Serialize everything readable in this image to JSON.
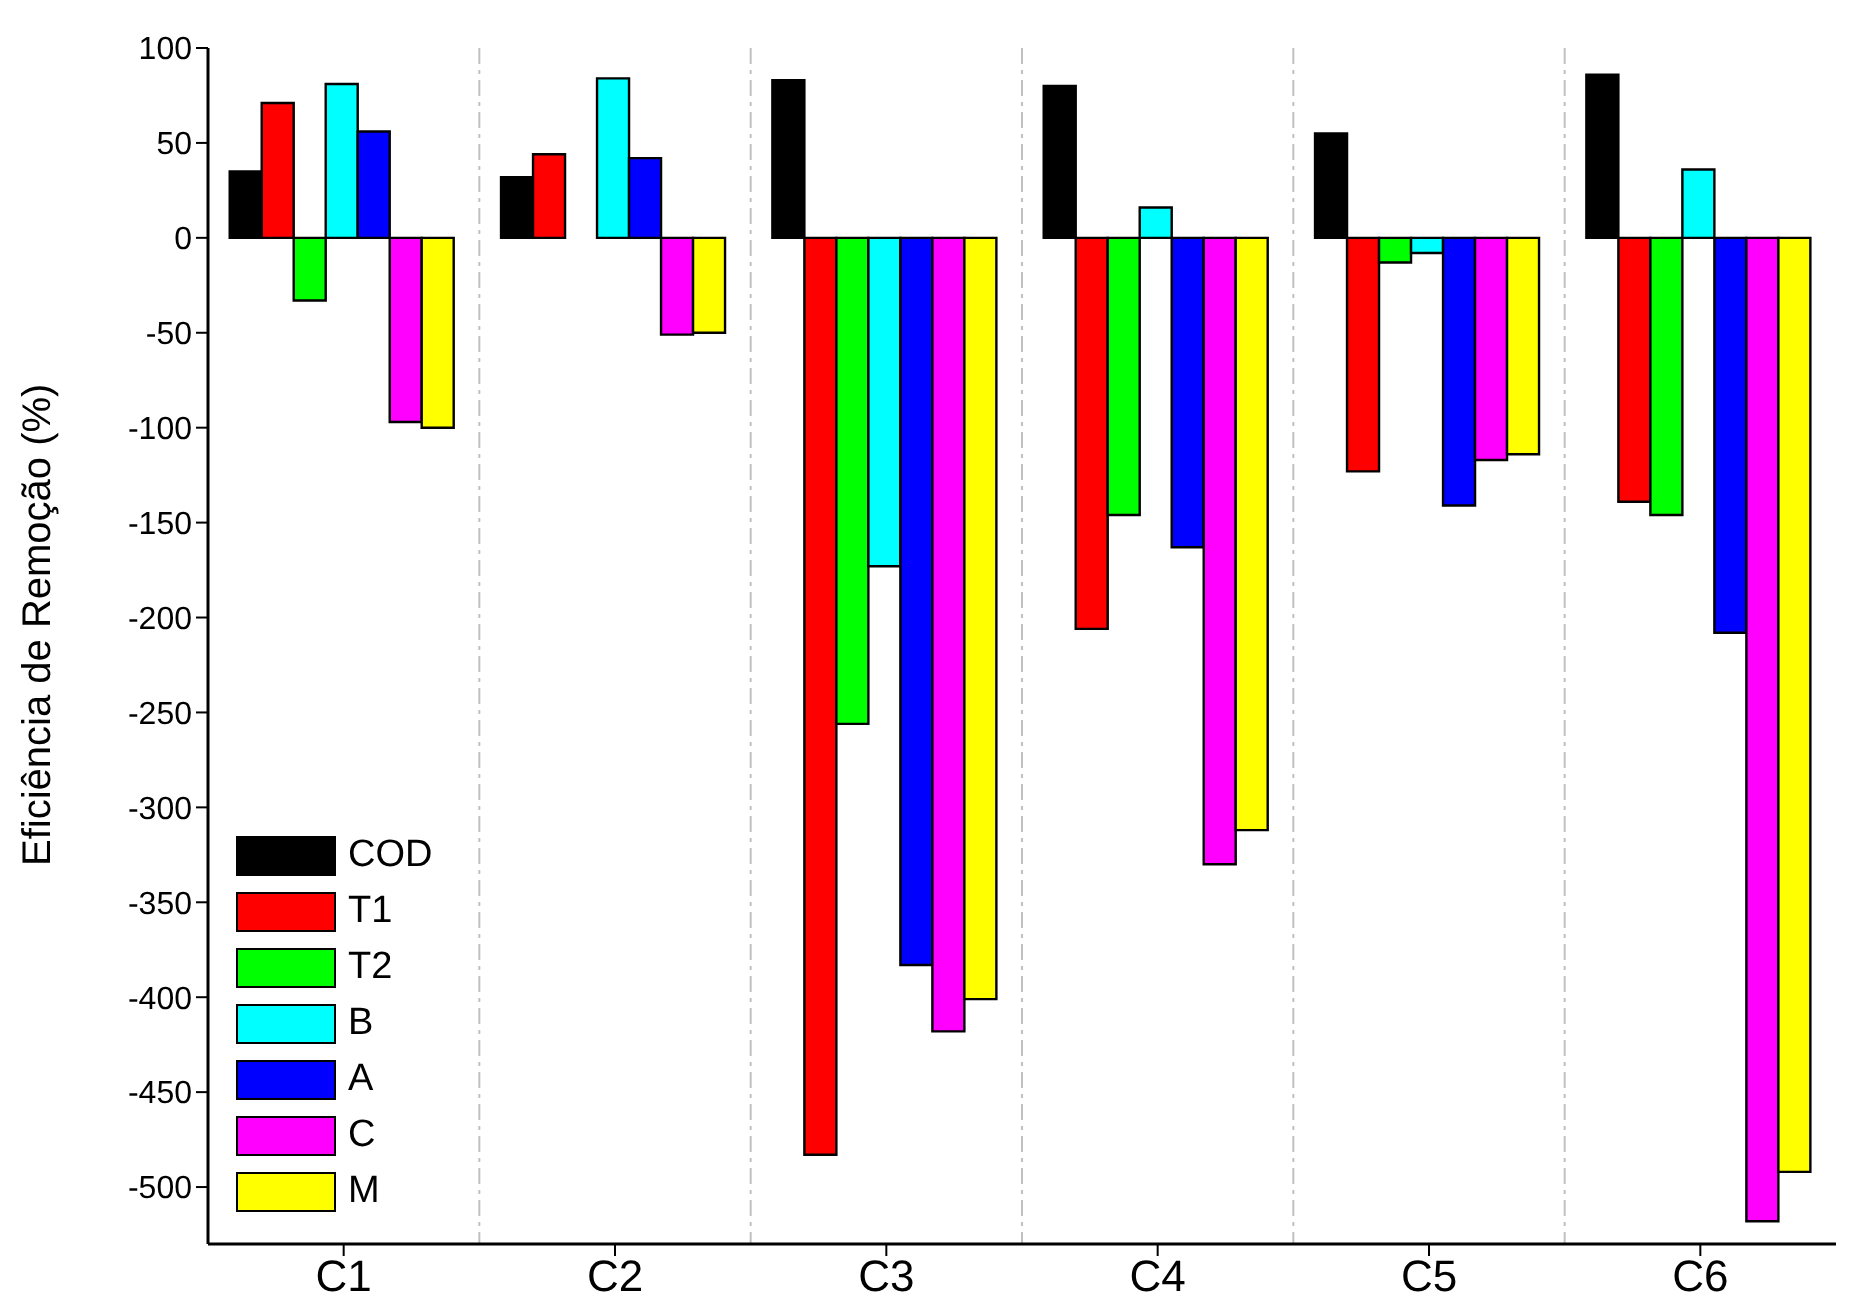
{
  "chart_data": {
    "type": "bar",
    "ylabel": "Eficiência de Remoção (%)",
    "categories": [
      "C1",
      "C2",
      "C3",
      "C4",
      "C5",
      "C6"
    ],
    "series": [
      {
        "name": "COD",
        "color": "#000000",
        "values": [
          35,
          32,
          83,
          80,
          55,
          86
        ]
      },
      {
        "name": "T1",
        "color": "#ff0000",
        "values": [
          71,
          44,
          -483,
          -206,
          -123,
          -139
        ]
      },
      {
        "name": "T2",
        "color": "#00ff00",
        "values": [
          -33,
          null,
          -256,
          -146,
          -13,
          -146
        ]
      },
      {
        "name": "B",
        "color": "#00ffff",
        "values": [
          81,
          84,
          -173,
          16,
          -8,
          36
        ]
      },
      {
        "name": "A",
        "color": "#0000ff",
        "values": [
          56,
          42,
          -383,
          -163,
          -141,
          -208
        ]
      },
      {
        "name": "C",
        "color": "#ff00ff",
        "values": [
          -97,
          -51,
          -418,
          -330,
          -117,
          -518
        ]
      },
      {
        "name": "M",
        "color": "#ffff00",
        "values": [
          -100,
          -50,
          -401,
          -312,
          -114,
          -492
        ]
      }
    ],
    "ylim": [
      -530,
      100
    ],
    "yticks": [
      100,
      50,
      0,
      -50,
      -100,
      -150,
      -200,
      -250,
      -300,
      -350,
      -400,
      -450,
      -500
    ],
    "grid": "x",
    "legend": "bottom left"
  }
}
